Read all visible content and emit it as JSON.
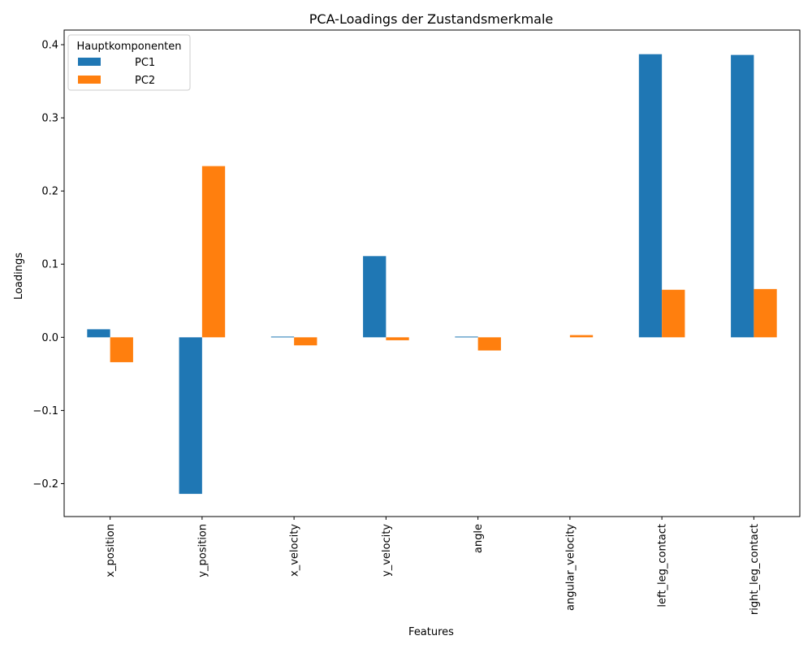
{
  "chart_data": {
    "type": "bar",
    "title": "PCA-Loadings der Zustandsmerkmale",
    "xlabel": "Features",
    "ylabel": "Loadings",
    "categories": [
      "x_position",
      "y_position",
      "x_velocity",
      "y_velocity",
      "angle",
      "angular_velocity",
      "left_leg_contact",
      "right_leg_contact"
    ],
    "series": [
      {
        "name": "PC1",
        "color": "#1f77b4",
        "values": [
          0.011,
          -0.214,
          0.001,
          0.111,
          0.001,
          0.0,
          0.387,
          0.386
        ]
      },
      {
        "name": "PC2",
        "color": "#ff7f0e",
        "values": [
          -0.034,
          0.234,
          -0.011,
          -0.004,
          -0.018,
          0.003,
          0.065,
          0.066
        ]
      }
    ],
    "ylim": [
      -0.245,
      0.42
    ],
    "yticks": [
      -0.2,
      -0.1,
      0.0,
      0.1,
      0.2,
      0.3,
      0.4
    ],
    "ytick_labels": [
      "−0.2",
      "−0.1",
      "0.0",
      "0.1",
      "0.2",
      "0.3",
      "0.4"
    ],
    "legend": {
      "title": "Hauptkomponenten",
      "position": "top-left"
    },
    "grid": false
  }
}
